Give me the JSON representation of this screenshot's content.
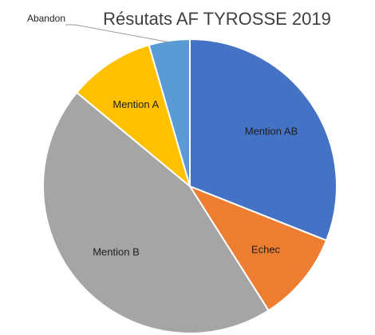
{
  "chart_data": {
    "type": "pie",
    "title": "Résutats AF TYROSSE 2019",
    "start_angle_deg": 0,
    "direction": "clockwise",
    "legend": "none",
    "slices": [
      {
        "label": "Mention AB",
        "value": 31,
        "color": "#4472C4"
      },
      {
        "label": "Echec",
        "value": 10,
        "color": "#ED7D31"
      },
      {
        "label": "Mention B",
        "value": 45,
        "color": "#A5A5A5"
      },
      {
        "label": "Mention A",
        "value": 9.5,
        "color": "#FFC000"
      },
      {
        "label": "Abandon",
        "value": 4.5,
        "color": "#5B9BD5"
      }
    ]
  }
}
